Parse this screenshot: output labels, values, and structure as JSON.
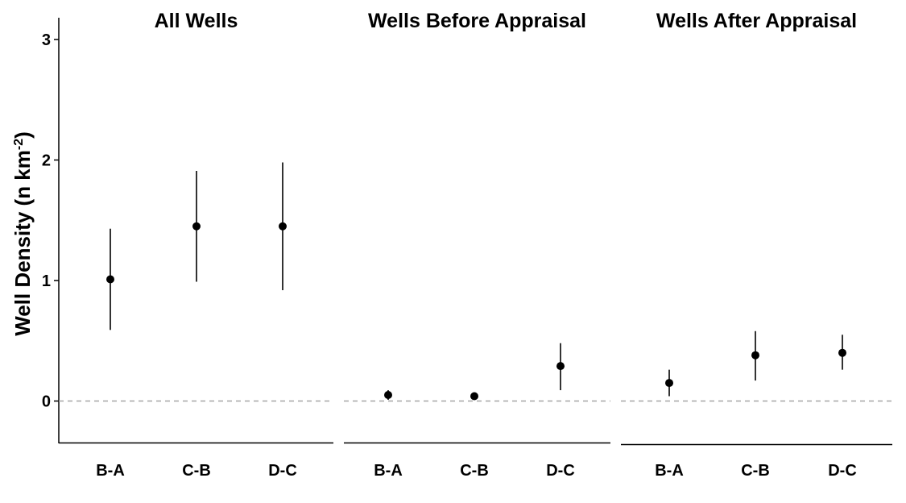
{
  "chart_data": {
    "type": "scatter",
    "ylabel": "Well Density (n km",
    "ylabel_superscript": "-2",
    "ylabel_suffix": ")",
    "ylim": [
      -0.36,
      3.17
    ],
    "yticks": [
      "0",
      "1",
      "2",
      "3"
    ],
    "reference_line": {
      "y": 0,
      "style": "dashed",
      "color": "#a6a6a6"
    },
    "panels": [
      {
        "title": "All Wells",
        "categories": [
          "B-A",
          "C-B",
          "D-C"
        ],
        "points": [
          {
            "category": "B-A",
            "estimate": 1.01,
            "lower": 0.59,
            "upper": 1.43
          },
          {
            "category": "C-B",
            "estimate": 1.45,
            "lower": 0.99,
            "upper": 1.91
          },
          {
            "category": "D-C",
            "estimate": 1.45,
            "lower": 0.92,
            "upper": 1.98
          }
        ]
      },
      {
        "title": "Wells Before Appraisal",
        "categories": [
          "B-A",
          "C-B",
          "D-C"
        ],
        "points": [
          {
            "category": "B-A",
            "estimate": 0.05,
            "lower": 0.01,
            "upper": 0.09
          },
          {
            "category": "C-B",
            "estimate": 0.04,
            "lower": 0.03,
            "upper": 0.05
          },
          {
            "category": "D-C",
            "estimate": 0.29,
            "lower": 0.09,
            "upper": 0.48
          }
        ]
      },
      {
        "title": "Wells After Appraisal",
        "categories": [
          "B-A",
          "C-B",
          "D-C"
        ],
        "points": [
          {
            "category": "B-A",
            "estimate": 0.15,
            "lower": 0.04,
            "upper": 0.26
          },
          {
            "category": "C-B",
            "estimate": 0.38,
            "lower": 0.17,
            "upper": 0.58
          },
          {
            "category": "D-C",
            "estimate": 0.4,
            "lower": 0.26,
            "upper": 0.55
          }
        ]
      }
    ],
    "grid": false,
    "legend": "none",
    "colors": {
      "point": "#000000",
      "errorbar": "#000000",
      "axis": "#000000",
      "reference": "#a6a6a6"
    }
  }
}
